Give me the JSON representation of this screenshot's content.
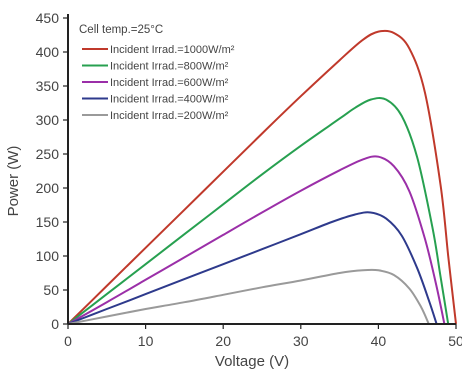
{
  "chart_data": {
    "type": "line",
    "title": "",
    "xlabel": "Voltage (V)",
    "ylabel": "Power (W)",
    "xlim": [
      0,
      50
    ],
    "ylim": [
      0,
      450
    ],
    "xticks": [
      "0",
      "10",
      "20",
      "30",
      "40",
      "50"
    ],
    "yticks": [
      "0",
      "50",
      "100",
      "150",
      "200",
      "250",
      "300",
      "350",
      "400",
      "450"
    ],
    "grid": false,
    "legend_position": "top-left",
    "annotation": "Cell temp.=25°C",
    "series": [
      {
        "name": "Incident Irrad.=1000W/m²",
        "color": "#c0392b",
        "x": [
          0,
          5,
          10,
          15,
          20,
          25,
          30,
          35,
          38,
          40,
          42,
          44,
          46,
          48,
          49,
          50
        ],
        "y": [
          0,
          56,
          112,
          168,
          224,
          280,
          335,
          388,
          418,
          430,
          428,
          405,
          340,
          205,
          100,
          0
        ]
      },
      {
        "name": "Incident Irrad.=800W/m²",
        "color": "#27a050",
        "x": [
          0,
          5,
          10,
          15,
          20,
          25,
          30,
          35,
          37,
          39,
          41,
          43,
          45,
          47,
          48,
          49
        ],
        "y": [
          0,
          44,
          88,
          132,
          176,
          220,
          262,
          302,
          318,
          330,
          330,
          306,
          245,
          140,
          70,
          0
        ]
      },
      {
        "name": "Incident Irrad.=600W/m²",
        "color": "#9b2fa8",
        "x": [
          0,
          5,
          10,
          15,
          20,
          25,
          30,
          35,
          38,
          40,
          42,
          44,
          46,
          47.5,
          48.5
        ],
        "y": [
          0,
          32,
          65,
          98,
          131,
          164,
          196,
          226,
          242,
          246,
          232,
          195,
          125,
          55,
          0
        ]
      },
      {
        "name": "Incident Irrad.=400W/m²",
        "color": "#2e3a8c",
        "x": [
          0,
          5,
          10,
          15,
          20,
          25,
          30,
          34,
          37,
          39,
          41,
          43,
          45,
          46.5,
          47.5
        ],
        "y": [
          0,
          22,
          44,
          66,
          88,
          110,
          132,
          150,
          161,
          164,
          155,
          130,
          82,
          35,
          0
        ]
      },
      {
        "name": "Incident Irrad.=200W/m²",
        "color": "#9a9a9a",
        "x": [
          0,
          5,
          10,
          15,
          20,
          25,
          30,
          35,
          38,
          40,
          42,
          44,
          45.5,
          46.5
        ],
        "y": [
          0,
          11,
          22,
          32,
          43,
          54,
          64,
          75,
          79,
          79,
          72,
          52,
          25,
          0
        ]
      }
    ]
  }
}
